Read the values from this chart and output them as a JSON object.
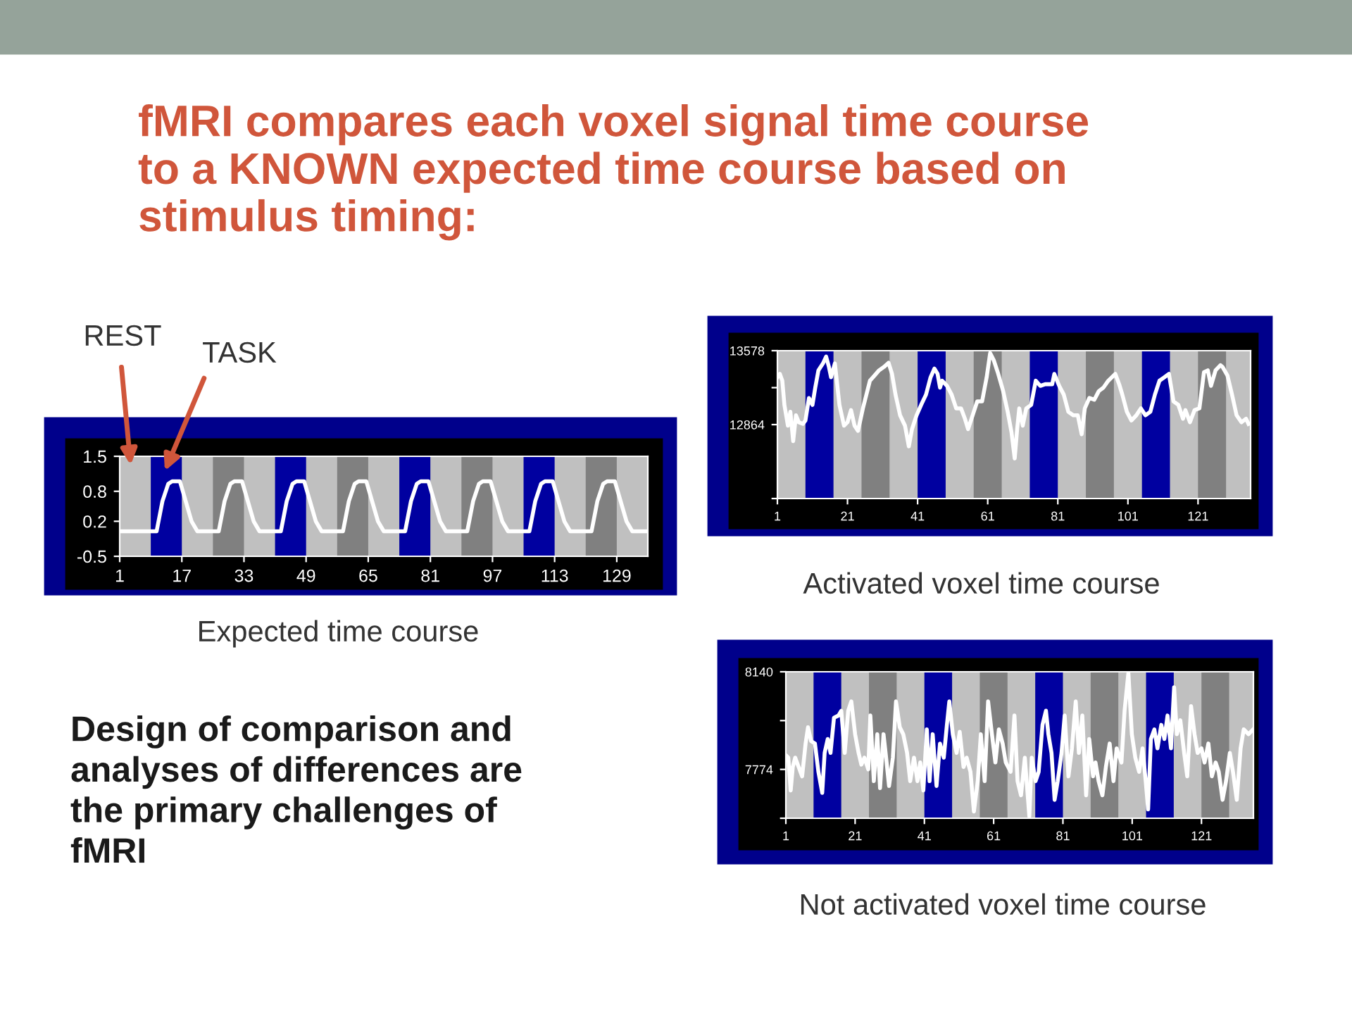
{
  "chart_data": [
    {
      "type": "line",
      "title": "fMRI compares each voxel signal time course\nto a KNOWN expected time course based on\nstimulus timing:",
      "x": [
        1,
        10.5,
        12,
        13.5,
        14.5,
        16.5,
        18,
        19.5,
        21,
        26.5,
        28,
        29.5,
        30.5,
        32.5,
        34,
        35.5,
        37,
        42.5,
        44,
        45.5,
        46.5,
        48.5,
        50,
        51.5,
        53,
        58.5,
        60,
        61.5,
        62.5,
        64.5,
        66,
        67.5,
        69,
        74.5,
        76,
        77.5,
        78.5,
        80.5,
        82,
        83.5,
        85,
        90.5,
        92,
        93.5,
        94.5,
        96.5,
        98,
        99.5,
        101,
        106.5,
        108,
        109.5,
        110.5,
        112.5,
        114,
        115.5,
        117,
        122.5,
        124,
        125.5,
        126.5,
        128.5,
        130,
        131.5,
        133,
        137
      ],
      "series": [
        {
          "color": "#ffffff",
          "values": [
            0,
            0,
            0.6,
            0.95,
            1,
            1,
            0.6,
            0.2,
            0,
            0,
            0.6,
            0.95,
            1,
            1,
            0.6,
            0.2,
            0,
            0,
            0.6,
            0.95,
            1,
            1,
            0.6,
            0.2,
            0,
            0,
            0.6,
            0.95,
            1,
            1,
            0.6,
            0.2,
            0,
            0,
            0.6,
            0.95,
            1,
            1,
            0.6,
            0.2,
            0,
            0,
            0.6,
            0.95,
            1,
            1,
            0.6,
            0.2,
            0,
            0,
            0.6,
            0.95,
            1,
            1,
            0.6,
            0.2,
            0,
            0,
            0.6,
            0.95,
            1,
            1,
            0.6,
            0.2,
            0,
            0
          ]
        }
      ],
      "xlim": [
        1,
        137
      ],
      "xticks": [
        1,
        17,
        33,
        49,
        65,
        81,
        97,
        113,
        129
      ],
      "ylim": [
        -0.5,
        1.5
      ],
      "yticks": [
        -0.5,
        0.2,
        0.8,
        1.5
      ],
      "bands": [
        {
          "axis": "x",
          "from": 9,
          "to": 17,
          "color": "#0000a0"
        },
        {
          "axis": "x",
          "from": 25,
          "to": 33,
          "color": "#808080"
        },
        {
          "axis": "x",
          "from": 41,
          "to": 49,
          "color": "#0000a0"
        },
        {
          "axis": "x",
          "from": 57,
          "to": 65,
          "color": "#808080"
        },
        {
          "axis": "x",
          "from": 73,
          "to": 81,
          "color": "#0000a0"
        },
        {
          "axis": "x",
          "from": 89,
          "to": 97,
          "color": "#808080"
        },
        {
          "axis": "x",
          "from": 105,
          "to": 113,
          "color": "#0000a0"
        },
        {
          "axis": "x",
          "from": 121,
          "to": 129,
          "color": "#808080"
        }
      ],
      "annotations": [
        "REST",
        "TASK",
        "Expected time course",
        "Design of comparison and\nanalyses of differences are\nthe primary challenges of\nfMRI"
      ]
    },
    {
      "type": "line",
      "x": [
        1,
        1.7,
        2.4,
        3,
        4,
        4.7,
        5.5,
        6.3,
        7.1,
        8.3,
        9,
        10,
        11,
        11.8,
        12.7,
        14,
        14.9,
        15.7,
        16.3,
        17.4,
        18.7,
        20,
        21,
        22,
        23,
        24,
        25.4,
        27.4,
        28.7,
        30,
        31.4,
        32.7,
        33.7,
        34.7,
        36,
        37.4,
        38.5,
        39.4,
        40.7,
        42,
        43.4,
        44.7,
        45.8,
        46.7,
        47.4,
        48,
        49.4,
        50.7,
        52,
        53.4,
        54.5,
        55.4,
        56.7,
        58,
        59.4,
        60.7,
        61.7,
        62.7,
        64,
        65.4,
        66.7,
        67.8,
        68.7,
        69.4,
        70,
        71,
        72,
        73.4,
        74.7,
        76,
        77.4,
        79.4,
        80,
        81.4,
        82.7,
        84,
        85.4,
        86.7,
        87.8,
        88.7,
        90,
        91.4,
        92.7,
        94,
        95.4,
        97.4,
        98.5,
        99.4,
        100.7,
        102,
        103.4,
        104.7,
        106,
        107.4,
        108.7,
        110,
        111.4,
        112.7,
        114,
        115.4,
        116.7,
        117.4,
        118.7,
        120,
        121.4,
        122.7,
        123.8,
        124.7,
        126,
        127.4,
        128,
        129.4,
        130.7,
        132,
        133.4,
        134.7,
        135.4
      ],
      "series": [
        {
          "color": "#ffffff",
          "values": [
            13321,
            13354,
            13288,
            13054,
            12854,
            12988,
            12704,
            12954,
            12887,
            12871,
            12904,
            13121,
            13054,
            13221,
            13388,
            13455,
            13521,
            13421,
            13321,
            13455,
            13054,
            12854,
            12887,
            13004,
            12854,
            12804,
            13021,
            13288,
            13338,
            13388,
            13421,
            13461,
            13354,
            13154,
            12954,
            12854,
            12654,
            12821,
            12954,
            13054,
            13154,
            13321,
            13405,
            13354,
            13221,
            13288,
            13238,
            13154,
            13021,
            13021,
            12921,
            12821,
            12954,
            13088,
            13088,
            13321,
            13555,
            13488,
            13354,
            13188,
            12988,
            12787,
            12537,
            12821,
            13021,
            12854,
            13021,
            13054,
            13288,
            13238,
            13254,
            13254,
            13354,
            13238,
            13154,
            12988,
            12954,
            12954,
            12771,
            13021,
            13121,
            13104,
            13188,
            13221,
            13288,
            13354,
            13254,
            13154,
            12988,
            12904,
            12954,
            13021,
            12954,
            12988,
            13154,
            13288,
            13321,
            13354,
            13088,
            13054,
            12921,
            13004,
            12887,
            13004,
            13021,
            13371,
            13388,
            13238,
            13388,
            13438,
            13421,
            13338,
            13154,
            12954,
            12887,
            12921,
            12871
          ]
        }
      ],
      "xlim": [
        1,
        136
      ],
      "xticks": [
        1,
        21,
        41,
        61,
        81,
        101,
        121
      ],
      "ylim": [
        12150,
        13578
      ],
      "yticks": [
        {
          "value": 12150,
          "label": null
        },
        12864,
        {
          "value": 13221,
          "label": null
        },
        13578
      ],
      "bands": [
        {
          "axis": "x",
          "from": 9,
          "to": 17,
          "color": "#0000a0"
        },
        {
          "axis": "x",
          "from": 25,
          "to": 33,
          "color": "#808080"
        },
        {
          "axis": "x",
          "from": 41,
          "to": 49,
          "color": "#0000a0"
        },
        {
          "axis": "x",
          "from": 57,
          "to": 65,
          "color": "#808080"
        },
        {
          "axis": "x",
          "from": 73,
          "to": 81,
          "color": "#0000a0"
        },
        {
          "axis": "x",
          "from": 89,
          "to": 97,
          "color": "#808080"
        },
        {
          "axis": "x",
          "from": 105,
          "to": 113,
          "color": "#0000a0"
        },
        {
          "axis": "x",
          "from": 121,
          "to": 129,
          "color": "#808080"
        }
      ],
      "annotations": [
        "Activated voxel time course"
      ]
    },
    {
      "type": "line",
      "x": [
        1,
        1.7,
        2.4,
        3,
        3.7,
        4.7,
        5.7,
        6.7,
        7.4,
        8.3,
        9.4,
        10.4,
        11.5,
        12.2,
        13.1,
        13.9,
        14.9,
        16.2,
        17,
        18,
        19,
        19.9,
        21,
        22,
        22.8,
        23.7,
        24.8,
        25.4,
        26.4,
        27.4,
        28.2,
        29.2,
        29.8,
        30.8,
        31.9,
        32.8,
        33.9,
        34.9,
        36,
        36.9,
        38,
        39,
        39.8,
        40.7,
        41.7,
        42.5,
        43.4,
        44.5,
        45.5,
        46.6,
        47.5,
        48.2,
        49.2,
        50.3,
        51.2,
        52.3,
        53.2,
        54.3,
        55.3,
        56.4,
        57.3,
        58.4,
        59.4,
        60.5,
        61.5,
        62.5,
        63.6,
        64.5,
        65.9,
        67,
        67.9,
        68.9,
        70,
        71.3,
        72,
        73.1,
        74,
        75.1,
        76.1,
        76.8,
        77.7,
        78.6,
        79.5,
        80.6,
        81.5,
        82.6,
        83.6,
        84.7,
        85.6,
        86.6,
        87.7,
        88.6,
        89.7,
        90.4,
        91.3,
        92.4,
        93.4,
        94.5,
        95.6,
        96.5,
        97.9,
        98.8,
        99.9,
        100.9,
        101.9,
        103,
        104,
        104.9,
        105.6,
        106.4,
        107.4,
        108.3,
        109.4,
        110.3,
        111.2,
        112.2,
        113.1,
        113.9,
        114.9,
        116,
        116.9,
        118,
        119,
        119.9,
        121,
        121.9,
        123,
        124,
        125.1,
        126,
        127.1,
        128.1,
        129.2,
        130.1,
        131.2,
        132.3,
        133.2,
        134.6,
        135.9
      ],
      "series": [
        {
          "color": "#ffffff",
          "values": [
            7827,
            7818,
            7695,
            7783,
            7818,
            7783,
            7748,
            7871,
            7932,
            7880,
            7871,
            7765,
            7686,
            7836,
            7888,
            7836,
            7968,
            7976,
            7994,
            7836,
            7994,
            8029,
            7906,
            7836,
            7792,
            7818,
            7774,
            7976,
            7730,
            7906,
            7704,
            7906,
            7836,
            7712,
            7818,
            8029,
            7932,
            7906,
            7836,
            7730,
            7818,
            7730,
            7800,
            7695,
            7924,
            7730,
            7906,
            7712,
            7871,
            7818,
            7941,
            8029,
            7906,
            7836,
            7915,
            7783,
            7818,
            7765,
            7616,
            7730,
            7906,
            7730,
            8029,
            7906,
            7800,
            7924,
            7871,
            7800,
            7765,
            7976,
            7730,
            7677,
            7818,
            7598,
            7818,
            7730,
            7765,
            7941,
            7994,
            7906,
            7836,
            7660,
            7730,
            7836,
            7976,
            7748,
            7853,
            8029,
            7836,
            7976,
            7677,
            7888,
            7748,
            7800,
            7730,
            7677,
            7783,
            7871,
            7730,
            7853,
            7800,
            7994,
            8135,
            7906,
            7818,
            7765,
            7853,
            7730,
            7624,
            7888,
            7924,
            7853,
            7941,
            7888,
            7976,
            7853,
            8082,
            7906,
            7958,
            7836,
            7748,
            8011,
            7906,
            7836,
            7853,
            7800,
            7871,
            7748,
            7800,
            7765,
            7660,
            7730,
            7836,
            7765,
            7660,
            7853,
            7924,
            7906,
            7924
          ]
        }
      ],
      "xlim": [
        1,
        136
      ],
      "xticks": [
        1,
        21,
        41,
        61,
        81,
        101,
        121
      ],
      "ylim": [
        7591,
        8140
      ],
      "yticks": [
        {
          "value": 7591,
          "label": null
        },
        7774,
        {
          "value": 7957,
          "label": null
        },
        8140
      ],
      "bands": [
        {
          "axis": "x",
          "from": 9,
          "to": 17,
          "color": "#0000a0"
        },
        {
          "axis": "x",
          "from": 25,
          "to": 33,
          "color": "#808080"
        },
        {
          "axis": "x",
          "from": 41,
          "to": 49,
          "color": "#0000a0"
        },
        {
          "axis": "x",
          "from": 57,
          "to": 65,
          "color": "#808080"
        },
        {
          "axis": "x",
          "from": 73,
          "to": 81,
          "color": "#0000a0"
        },
        {
          "axis": "x",
          "from": 89,
          "to": 97,
          "color": "#808080"
        },
        {
          "axis": "x",
          "from": 105,
          "to": 113,
          "color": "#0000a0"
        },
        {
          "axis": "x",
          "from": 121,
          "to": 129,
          "color": "#808080"
        }
      ],
      "annotations": [
        "Not activated voxel time course"
      ]
    }
  ]
}
